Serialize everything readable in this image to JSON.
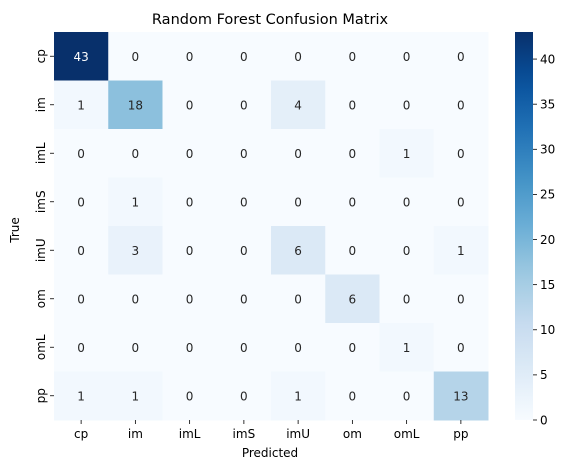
{
  "chart_data": {
    "type": "heatmap",
    "title": "Random Forest Confusion Matrix",
    "xlabel": "Predicted",
    "ylabel": "True",
    "x_categories": [
      "cp",
      "im",
      "imL",
      "imS",
      "imU",
      "om",
      "omL",
      "pp"
    ],
    "y_categories": [
      "cp",
      "im",
      "imL",
      "imS",
      "imU",
      "om",
      "omL",
      "pp"
    ],
    "values": [
      [
        43,
        0,
        0,
        0,
        0,
        0,
        0,
        0
      ],
      [
        1,
        18,
        0,
        0,
        4,
        0,
        0,
        0
      ],
      [
        0,
        0,
        0,
        0,
        0,
        0,
        1,
        0
      ],
      [
        0,
        1,
        0,
        0,
        0,
        0,
        0,
        0
      ],
      [
        0,
        3,
        0,
        0,
        6,
        0,
        0,
        1
      ],
      [
        0,
        0,
        0,
        0,
        0,
        6,
        0,
        0
      ],
      [
        0,
        0,
        0,
        0,
        0,
        0,
        1,
        0
      ],
      [
        1,
        1,
        0,
        0,
        1,
        0,
        0,
        13
      ]
    ],
    "colormap": "Blues",
    "vmin": 0,
    "vmax": 43,
    "colorbar_ticks": [
      0,
      5,
      10,
      15,
      20,
      25,
      30,
      35,
      40
    ],
    "colors": {
      "low": "#f7fbff",
      "high": "#08306b"
    }
  }
}
